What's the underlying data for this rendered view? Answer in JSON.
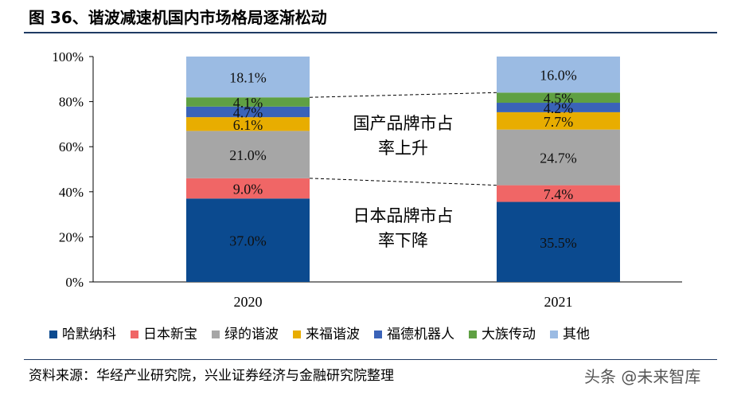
{
  "title": "图 36、谐波减速机国内市场格局逐渐松动",
  "source": "资料来源：华经产业研究院，兴业证券经济与金融研究院整理",
  "watermark": "头条 @未来智库",
  "annotations": {
    "domestic": [
      "国产品牌市占",
      "率上升"
    ],
    "japan": [
      "日本品牌市占",
      "率下降"
    ]
  },
  "chart_data": {
    "type": "bar",
    "stacked": true,
    "categories": [
      "2020",
      "2021"
    ],
    "ylim": [
      0,
      100
    ],
    "yticks": [
      "0%",
      "20%",
      "40%",
      "60%",
      "80%",
      "100%"
    ],
    "legend_position": "bottom",
    "series": [
      {
        "name": "哈默纳科",
        "color": "#0b4a8f",
        "values": [
          37.0,
          35.5
        ],
        "labels": [
          "37.0%",
          "35.5%"
        ]
      },
      {
        "name": "日本新宝",
        "color": "#f06666",
        "values": [
          9.0,
          7.4
        ],
        "labels": [
          "9.0%",
          "7.4%"
        ]
      },
      {
        "name": "绿的谐波",
        "color": "#a6a6a6",
        "values": [
          21.0,
          24.7
        ],
        "labels": [
          "21.0%",
          "24.7%"
        ]
      },
      {
        "name": "来福谐波",
        "color": "#e8ad00",
        "values": [
          6.1,
          7.7
        ],
        "labels": [
          "6.1%",
          "7.7%"
        ]
      },
      {
        "name": "福德机器人",
        "color": "#3a63b8",
        "values": [
          4.7,
          4.2
        ],
        "labels": [
          "4.7%",
          "4.2%"
        ]
      },
      {
        "name": "大族传动",
        "color": "#5fa043",
        "values": [
          4.1,
          4.5
        ],
        "labels": [
          "4.1%",
          "4.5%"
        ]
      },
      {
        "name": "其他",
        "color": "#9bbbe3",
        "values": [
          18.1,
          16.0
        ],
        "labels": [
          "18.1%",
          "16.0%"
        ]
      }
    ]
  }
}
